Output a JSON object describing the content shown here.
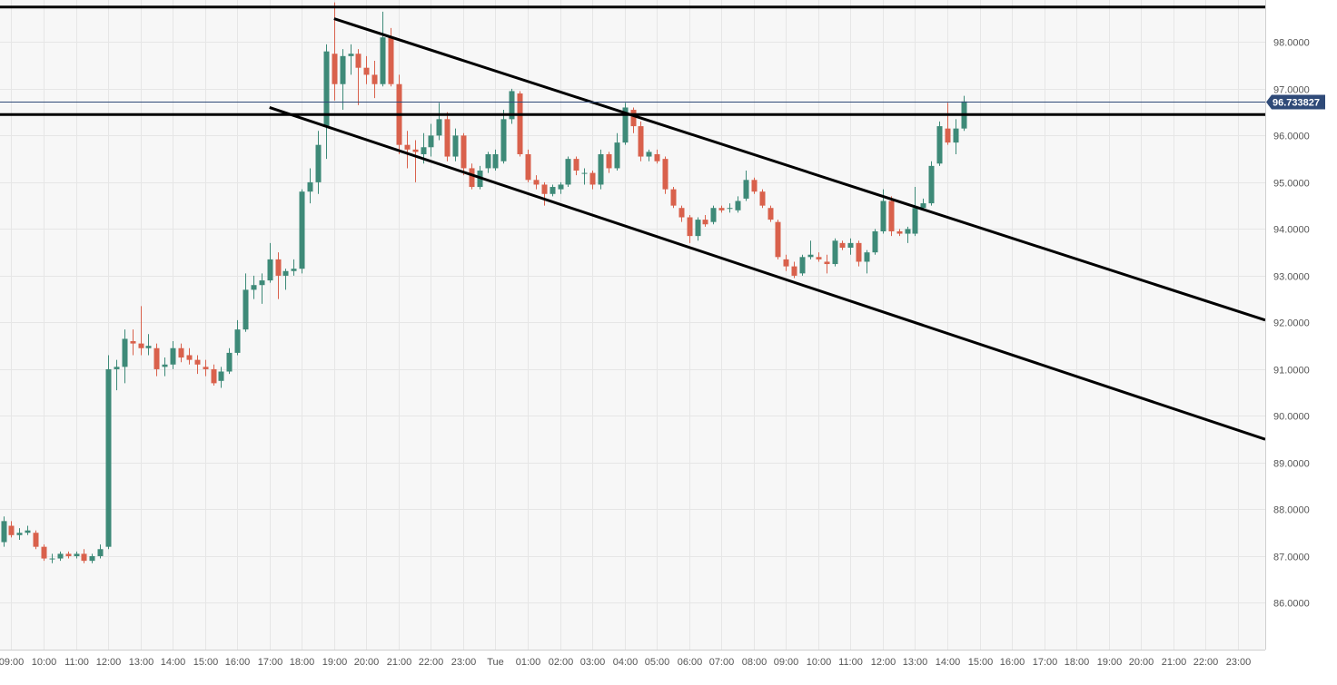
{
  "chart_data": {
    "type": "candlestick",
    "title": "",
    "xlabel": "",
    "ylabel": "",
    "ylim": [
      85.0,
      98.9
    ],
    "y_ticks": [
      "86.0000",
      "87.0000",
      "88.0000",
      "89.0000",
      "90.0000",
      "91.0000",
      "92.0000",
      "93.0000",
      "94.0000",
      "95.0000",
      "96.0000",
      "97.0000",
      "98.0000"
    ],
    "x_ticks": [
      "09:00",
      "10:00",
      "11:00",
      "12:00",
      "13:00",
      "14:00",
      "15:00",
      "16:00",
      "17:00",
      "18:00",
      "19:00",
      "20:00",
      "21:00",
      "22:00",
      "23:00",
      "Tue",
      "01:00",
      "02:00",
      "03:00",
      "04:00",
      "05:00",
      "06:00",
      "07:00",
      "08:00",
      "09:00",
      "10:00",
      "11:00",
      "12:00",
      "13:00",
      "14:00",
      "15:00",
      "16:00",
      "17:00",
      "18:00",
      "19:00",
      "20:00",
      "21:00",
      "22:00",
      "23:00"
    ],
    "x_tick_hours": [
      9,
      10,
      11,
      12,
      13,
      14,
      15,
      16,
      17,
      18,
      19,
      20,
      21,
      22,
      23,
      24,
      25,
      26,
      27,
      28,
      29,
      30,
      31,
      32,
      33,
      34,
      35,
      36,
      37,
      38,
      39,
      40,
      41,
      42,
      43,
      44,
      45,
      46,
      47
    ],
    "x_range_hours": [
      8.65,
      47.85
    ],
    "current_price": 96.733827,
    "current_price_label": "96.733827",
    "colors": {
      "up": "#3e8a78",
      "down": "#d9614c",
      "grid": "#e6e6e6",
      "plot_bg": "#f7f7f7",
      "price_line": "#2f4a78",
      "price_tag": "#2f4a78",
      "trendline": "#000000",
      "axis_text": "#555555"
    },
    "trendlines": [
      {
        "name": "top-resistance",
        "points": [
          [
            8.65,
            98.75
          ],
          [
            47.85,
            98.75
          ]
        ]
      },
      {
        "name": "horizontal-resistance",
        "points": [
          [
            8.65,
            96.45
          ],
          [
            47.85,
            96.45
          ]
        ]
      },
      {
        "name": "channel-upper",
        "points": [
          [
            19.0,
            98.5
          ],
          [
            47.85,
            92.05
          ]
        ]
      },
      {
        "name": "channel-lower",
        "points": [
          [
            17.0,
            96.6
          ],
          [
            47.85,
            89.5
          ]
        ]
      }
    ],
    "candles": [
      {
        "t": 8.75,
        "o": 87.3,
        "h": 87.85,
        "l": 87.2,
        "c": 87.75
      },
      {
        "t": 9.0,
        "o": 87.65,
        "h": 87.75,
        "l": 87.4,
        "c": 87.45
      },
      {
        "t": 9.25,
        "o": 87.45,
        "h": 87.6,
        "l": 87.35,
        "c": 87.5
      },
      {
        "t": 9.5,
        "o": 87.5,
        "h": 87.65,
        "l": 87.45,
        "c": 87.55
      },
      {
        "t": 9.75,
        "o": 87.5,
        "h": 87.55,
        "l": 87.15,
        "c": 87.2
      },
      {
        "t": 10.0,
        "o": 87.2,
        "h": 87.25,
        "l": 86.9,
        "c": 86.95
      },
      {
        "t": 10.25,
        "o": 86.95,
        "h": 87.05,
        "l": 86.85,
        "c": 86.95
      },
      {
        "t": 10.5,
        "o": 86.95,
        "h": 87.1,
        "l": 86.9,
        "c": 87.05
      },
      {
        "t": 10.75,
        "o": 87.05,
        "h": 87.1,
        "l": 86.95,
        "c": 87.0
      },
      {
        "t": 11.0,
        "o": 87.0,
        "h": 87.1,
        "l": 86.95,
        "c": 87.05
      },
      {
        "t": 11.25,
        "o": 87.05,
        "h": 87.15,
        "l": 86.85,
        "c": 86.9
      },
      {
        "t": 11.5,
        "o": 86.9,
        "h": 87.05,
        "l": 86.85,
        "c": 87.0
      },
      {
        "t": 11.75,
        "o": 87.0,
        "h": 87.25,
        "l": 86.95,
        "c": 87.15
      },
      {
        "t": 12.0,
        "o": 87.2,
        "h": 91.3,
        "l": 87.15,
        "c": 91.0
      },
      {
        "t": 12.25,
        "o": 91.0,
        "h": 91.2,
        "l": 90.55,
        "c": 91.05
      },
      {
        "t": 12.5,
        "o": 91.05,
        "h": 91.85,
        "l": 90.7,
        "c": 91.65
      },
      {
        "t": 12.75,
        "o": 91.6,
        "h": 91.85,
        "l": 91.3,
        "c": 91.55
      },
      {
        "t": 13.0,
        "o": 91.55,
        "h": 92.35,
        "l": 91.3,
        "c": 91.45
      },
      {
        "t": 13.25,
        "o": 91.45,
        "h": 91.75,
        "l": 91.3,
        "c": 91.5
      },
      {
        "t": 13.5,
        "o": 91.45,
        "h": 91.55,
        "l": 90.85,
        "c": 91.0
      },
      {
        "t": 13.75,
        "o": 91.05,
        "h": 91.25,
        "l": 90.85,
        "c": 91.1
      },
      {
        "t": 14.0,
        "o": 91.1,
        "h": 91.6,
        "l": 91.0,
        "c": 91.45
      },
      {
        "t": 14.25,
        "o": 91.45,
        "h": 91.55,
        "l": 91.15,
        "c": 91.25
      },
      {
        "t": 14.5,
        "o": 91.3,
        "h": 91.45,
        "l": 91.1,
        "c": 91.2
      },
      {
        "t": 14.75,
        "o": 91.2,
        "h": 91.3,
        "l": 90.9,
        "c": 91.1
      },
      {
        "t": 15.0,
        "o": 91.05,
        "h": 91.2,
        "l": 90.85,
        "c": 91.0
      },
      {
        "t": 15.25,
        "o": 91.0,
        "h": 91.1,
        "l": 90.65,
        "c": 90.7
      },
      {
        "t": 15.5,
        "o": 90.75,
        "h": 91.05,
        "l": 90.6,
        "c": 90.95
      },
      {
        "t": 15.75,
        "o": 90.95,
        "h": 91.45,
        "l": 90.9,
        "c": 91.35
      },
      {
        "t": 16.0,
        "o": 91.35,
        "h": 92.05,
        "l": 91.3,
        "c": 91.85
      },
      {
        "t": 16.25,
        "o": 91.85,
        "h": 93.05,
        "l": 91.8,
        "c": 92.7
      },
      {
        "t": 16.5,
        "o": 92.7,
        "h": 93.0,
        "l": 92.5,
        "c": 92.8
      },
      {
        "t": 16.75,
        "o": 92.8,
        "h": 93.05,
        "l": 92.4,
        "c": 92.9
      },
      {
        "t": 17.0,
        "o": 92.9,
        "h": 93.7,
        "l": 92.85,
        "c": 93.35
      },
      {
        "t": 17.25,
        "o": 93.35,
        "h": 93.5,
        "l": 92.5,
        "c": 93.0
      },
      {
        "t": 17.5,
        "o": 93.0,
        "h": 93.15,
        "l": 92.7,
        "c": 93.1
      },
      {
        "t": 17.75,
        "o": 93.1,
        "h": 93.35,
        "l": 93.0,
        "c": 93.15
      },
      {
        "t": 18.0,
        "o": 93.15,
        "h": 94.85,
        "l": 93.05,
        "c": 94.8
      },
      {
        "t": 18.25,
        "o": 94.8,
        "h": 95.3,
        "l": 94.55,
        "c": 95.0
      },
      {
        "t": 18.5,
        "o": 95.0,
        "h": 96.1,
        "l": 94.75,
        "c": 95.8
      },
      {
        "t": 18.75,
        "o": 96.2,
        "h": 97.95,
        "l": 95.5,
        "c": 97.8
      },
      {
        "t": 19.0,
        "o": 97.75,
        "h": 98.85,
        "l": 96.75,
        "c": 97.1
      },
      {
        "t": 19.25,
        "o": 97.1,
        "h": 97.85,
        "l": 96.55,
        "c": 97.7
      },
      {
        "t": 19.5,
        "o": 97.7,
        "h": 97.95,
        "l": 97.3,
        "c": 97.75
      },
      {
        "t": 19.75,
        "o": 97.75,
        "h": 97.85,
        "l": 96.65,
        "c": 97.45
      },
      {
        "t": 20.0,
        "o": 97.45,
        "h": 97.7,
        "l": 97.1,
        "c": 97.3
      },
      {
        "t": 20.25,
        "o": 97.3,
        "h": 97.6,
        "l": 96.8,
        "c": 97.1
      },
      {
        "t": 20.5,
        "o": 97.1,
        "h": 98.65,
        "l": 97.05,
        "c": 98.1
      },
      {
        "t": 20.75,
        "o": 98.1,
        "h": 98.3,
        "l": 97.05,
        "c": 97.1
      },
      {
        "t": 21.0,
        "o": 97.1,
        "h": 97.3,
        "l": 95.6,
        "c": 95.8
      },
      {
        "t": 21.25,
        "o": 95.8,
        "h": 96.1,
        "l": 95.3,
        "c": 95.7
      },
      {
        "t": 21.5,
        "o": 95.7,
        "h": 95.9,
        "l": 95.0,
        "c": 95.65
      },
      {
        "t": 21.75,
        "o": 95.6,
        "h": 96.05,
        "l": 95.4,
        "c": 95.75
      },
      {
        "t": 22.0,
        "o": 95.75,
        "h": 96.25,
        "l": 95.55,
        "c": 96.0
      },
      {
        "t": 22.25,
        "o": 96.0,
        "h": 96.7,
        "l": 95.9,
        "c": 96.35
      },
      {
        "t": 22.5,
        "o": 96.35,
        "h": 96.5,
        "l": 95.45,
        "c": 95.55
      },
      {
        "t": 22.75,
        "o": 95.55,
        "h": 96.15,
        "l": 95.45,
        "c": 96.0
      },
      {
        "t": 23.0,
        "o": 96.0,
        "h": 96.05,
        "l": 95.15,
        "c": 95.3
      },
      {
        "t": 23.25,
        "o": 95.3,
        "h": 95.4,
        "l": 94.85,
        "c": 94.9
      },
      {
        "t": 23.5,
        "o": 94.9,
        "h": 95.35,
        "l": 94.85,
        "c": 95.25
      },
      {
        "t": 23.75,
        "o": 95.3,
        "h": 95.65,
        "l": 95.2,
        "c": 95.6
      },
      {
        "t": 24.0,
        "o": 95.3,
        "h": 95.7,
        "l": 95.25,
        "c": 95.6
      },
      {
        "t": 24.25,
        "o": 95.45,
        "h": 96.55,
        "l": 95.4,
        "c": 96.35
      },
      {
        "t": 24.5,
        "o": 96.35,
        "h": 97.0,
        "l": 96.25,
        "c": 96.95
      },
      {
        "t": 24.75,
        "o": 96.9,
        "h": 96.95,
        "l": 95.55,
        "c": 95.6
      },
      {
        "t": 25.0,
        "o": 95.6,
        "h": 95.7,
        "l": 95.0,
        "c": 95.05
      },
      {
        "t": 25.25,
        "o": 95.05,
        "h": 95.15,
        "l": 94.85,
        "c": 94.95
      },
      {
        "t": 25.5,
        "o": 94.95,
        "h": 95.0,
        "l": 94.5,
        "c": 94.75
      },
      {
        "t": 25.75,
        "o": 94.75,
        "h": 94.95,
        "l": 94.7,
        "c": 94.9
      },
      {
        "t": 26.0,
        "o": 94.85,
        "h": 95.0,
        "l": 94.75,
        "c": 94.95
      },
      {
        "t": 26.25,
        "o": 94.95,
        "h": 95.55,
        "l": 94.9,
        "c": 95.5
      },
      {
        "t": 26.5,
        "o": 95.5,
        "h": 95.55,
        "l": 95.15,
        "c": 95.25
      },
      {
        "t": 26.75,
        "o": 95.2,
        "h": 95.3,
        "l": 94.95,
        "c": 95.2
      },
      {
        "t": 27.0,
        "o": 95.2,
        "h": 95.25,
        "l": 94.85,
        "c": 94.95
      },
      {
        "t": 27.25,
        "o": 94.95,
        "h": 95.7,
        "l": 94.85,
        "c": 95.6
      },
      {
        "t": 27.5,
        "o": 95.6,
        "h": 95.65,
        "l": 95.2,
        "c": 95.3
      },
      {
        "t": 27.75,
        "o": 95.3,
        "h": 96.05,
        "l": 95.25,
        "c": 95.85
      },
      {
        "t": 28.0,
        "o": 95.85,
        "h": 96.7,
        "l": 95.8,
        "c": 96.6
      },
      {
        "t": 28.25,
        "o": 96.55,
        "h": 96.6,
        "l": 96.05,
        "c": 96.2
      },
      {
        "t": 28.5,
        "o": 96.2,
        "h": 96.3,
        "l": 95.45,
        "c": 95.55
      },
      {
        "t": 28.75,
        "o": 95.55,
        "h": 95.7,
        "l": 95.45,
        "c": 95.65
      },
      {
        "t": 29.0,
        "o": 95.6,
        "h": 95.7,
        "l": 95.4,
        "c": 95.45
      },
      {
        "t": 29.25,
        "o": 95.5,
        "h": 95.55,
        "l": 94.75,
        "c": 94.85
      },
      {
        "t": 29.5,
        "o": 94.85,
        "h": 94.9,
        "l": 94.45,
        "c": 94.5
      },
      {
        "t": 29.75,
        "o": 94.45,
        "h": 94.5,
        "l": 94.15,
        "c": 94.25
      },
      {
        "t": 30.0,
        "o": 94.25,
        "h": 94.3,
        "l": 93.7,
        "c": 93.85
      },
      {
        "t": 30.25,
        "o": 93.85,
        "h": 94.25,
        "l": 93.75,
        "c": 94.2
      },
      {
        "t": 30.5,
        "o": 94.2,
        "h": 94.3,
        "l": 94.05,
        "c": 94.1
      },
      {
        "t": 30.75,
        "o": 94.15,
        "h": 94.5,
        "l": 94.1,
        "c": 94.45
      },
      {
        "t": 31.0,
        "o": 94.45,
        "h": 94.5,
        "l": 94.35,
        "c": 94.4
      },
      {
        "t": 31.25,
        "o": 94.45,
        "h": 94.55,
        "l": 94.35,
        "c": 94.45
      },
      {
        "t": 31.5,
        "o": 94.4,
        "h": 94.7,
        "l": 94.35,
        "c": 94.6
      },
      {
        "t": 31.75,
        "o": 94.65,
        "h": 95.25,
        "l": 94.6,
        "c": 95.05
      },
      {
        "t": 32.0,
        "o": 95.05,
        "h": 95.1,
        "l": 94.75,
        "c": 94.8
      },
      {
        "t": 32.25,
        "o": 94.8,
        "h": 94.85,
        "l": 94.45,
        "c": 94.5
      },
      {
        "t": 32.5,
        "o": 94.45,
        "h": 94.5,
        "l": 94.15,
        "c": 94.2
      },
      {
        "t": 32.75,
        "o": 94.15,
        "h": 94.2,
        "l": 93.35,
        "c": 93.4
      },
      {
        "t": 33.0,
        "o": 93.35,
        "h": 93.45,
        "l": 93.1,
        "c": 93.2
      },
      {
        "t": 33.25,
        "o": 93.2,
        "h": 93.3,
        "l": 92.95,
        "c": 93.0
      },
      {
        "t": 33.5,
        "o": 93.05,
        "h": 93.45,
        "l": 93.0,
        "c": 93.4
      },
      {
        "t": 33.75,
        "o": 93.4,
        "h": 93.75,
        "l": 93.35,
        "c": 93.45
      },
      {
        "t": 34.0,
        "o": 93.4,
        "h": 93.5,
        "l": 93.3,
        "c": 93.35
      },
      {
        "t": 34.25,
        "o": 93.3,
        "h": 93.45,
        "l": 93.05,
        "c": 93.25
      },
      {
        "t": 34.5,
        "o": 93.25,
        "h": 93.8,
        "l": 93.2,
        "c": 93.75
      },
      {
        "t": 34.75,
        "o": 93.7,
        "h": 93.75,
        "l": 93.55,
        "c": 93.6
      },
      {
        "t": 35.0,
        "o": 93.6,
        "h": 93.8,
        "l": 93.45,
        "c": 93.7
      },
      {
        "t": 35.25,
        "o": 93.7,
        "h": 93.75,
        "l": 93.2,
        "c": 93.3
      },
      {
        "t": 35.5,
        "o": 93.3,
        "h": 93.55,
        "l": 93.05,
        "c": 93.5
      },
      {
        "t": 35.75,
        "o": 93.5,
        "h": 94.0,
        "l": 93.45,
        "c": 93.95
      },
      {
        "t": 36.0,
        "o": 93.95,
        "h": 94.85,
        "l": 93.9,
        "c": 94.6
      },
      {
        "t": 36.25,
        "o": 94.6,
        "h": 94.7,
        "l": 93.85,
        "c": 93.95
      },
      {
        "t": 36.5,
        "o": 93.95,
        "h": 94.0,
        "l": 93.85,
        "c": 93.9
      },
      {
        "t": 36.75,
        "o": 93.9,
        "h": 94.05,
        "l": 93.7,
        "c": 94.0
      },
      {
        "t": 37.0,
        "o": 93.9,
        "h": 94.9,
        "l": 93.85,
        "c": 94.45
      },
      {
        "t": 37.25,
        "o": 94.45,
        "h": 94.65,
        "l": 94.4,
        "c": 94.55
      },
      {
        "t": 37.5,
        "o": 94.55,
        "h": 95.45,
        "l": 94.5,
        "c": 95.35
      },
      {
        "t": 37.75,
        "o": 95.4,
        "h": 96.3,
        "l": 95.35,
        "c": 96.2
      },
      {
        "t": 38.0,
        "o": 96.15,
        "h": 96.7,
        "l": 95.8,
        "c": 95.85
      },
      {
        "t": 38.25,
        "o": 95.85,
        "h": 96.35,
        "l": 95.6,
        "c": 96.15
      },
      {
        "t": 38.5,
        "o": 96.15,
        "h": 96.85,
        "l": 96.1,
        "c": 96.73
      }
    ]
  }
}
